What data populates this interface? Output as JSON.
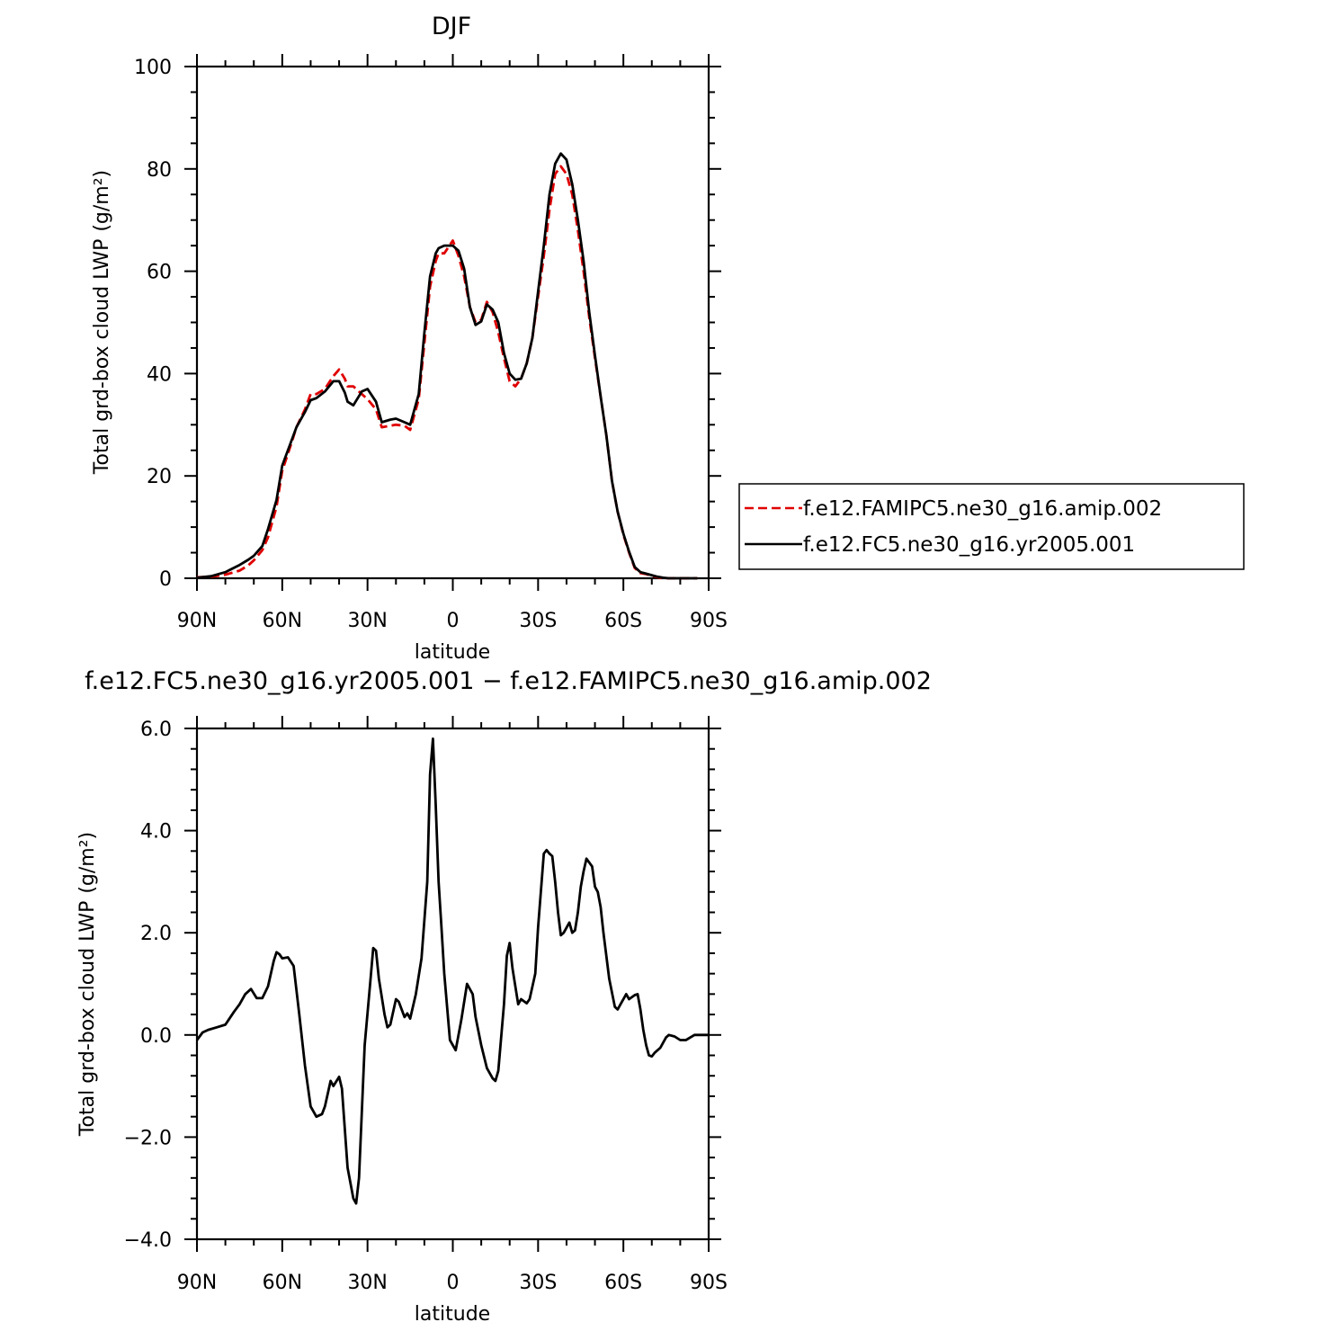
{
  "chart_data": [
    {
      "type": "line",
      "title": "DJF",
      "xlabel": "latitude",
      "ylabel": "Total grd-box cloud LWP",
      "ylabel_unit": "(g/m²)",
      "x_tick_labels": [
        "90N",
        "60N",
        "30N",
        "0",
        "30S",
        "60S",
        "90S"
      ],
      "x_tick_values": [
        90,
        60,
        30,
        0,
        -30,
        -60,
        -90
      ],
      "xlim": [
        90,
        -90
      ],
      "ylim": [
        0,
        100
      ],
      "y_tick_values": [
        0,
        20,
        40,
        60,
        80,
        100
      ],
      "y_tick_labels": [
        "0",
        "20",
        "40",
        "60",
        "80",
        "100"
      ],
      "legend_position": "right",
      "series": [
        {
          "name": "f.e12.FAMIPC5.ne30_g16.amip.002",
          "color": "#e00000",
          "dash": "dashed",
          "x": [
            90,
            85,
            80,
            75,
            72,
            70,
            67,
            65,
            62,
            60,
            57,
            55,
            52,
            50,
            48,
            45,
            42,
            40,
            38,
            37,
            35,
            32,
            30,
            27,
            25,
            22,
            20,
            17,
            15,
            12,
            10,
            8,
            6,
            5,
            3,
            0,
            -2,
            -4,
            -6,
            -8,
            -10,
            -12,
            -14,
            -16,
            -18,
            -20,
            -22,
            -24,
            -26,
            -28,
            -30,
            -32,
            -34,
            -36,
            -38,
            -40,
            -42,
            -44,
            -46,
            -48,
            -50,
            -52,
            -54,
            -56,
            -58,
            -60,
            -62,
            -64,
            -66,
            -68,
            -70,
            -72,
            -74,
            -76,
            -78,
            -80,
            -83,
            -86
          ],
          "values": [
            0.2,
            0.3,
            0.7,
            1.5,
            2.5,
            3.5,
            5.5,
            8,
            14,
            21,
            26,
            29.5,
            33,
            36,
            36,
            37,
            39.5,
            40.8,
            39,
            37.5,
            37.5,
            36,
            35,
            33,
            29.5,
            29.8,
            30,
            29.8,
            29,
            35,
            46,
            57,
            62,
            63.5,
            63.5,
            66,
            63,
            59,
            53,
            50,
            50.5,
            54,
            52,
            48,
            43,
            38.5,
            37.5,
            39,
            42,
            47,
            55,
            63,
            72,
            79,
            80.5,
            79,
            75,
            68,
            60,
            51,
            43,
            35.5,
            28,
            19,
            13,
            8.5,
            5,
            2,
            1,
            0.8,
            0.5,
            0.2,
            0,
            0,
            0,
            0,
            0,
            0
          ]
        },
        {
          "name": "f.e12.FC5.ne30_g16.yr2005.001",
          "color": "#000000",
          "dash": "solid",
          "x": [
            90,
            85,
            80,
            75,
            72,
            70,
            67,
            65,
            62,
            60,
            57,
            55,
            52,
            50,
            48,
            45,
            42,
            40,
            38,
            37,
            35,
            32,
            30,
            27,
            25,
            22,
            20,
            17,
            15,
            12,
            10,
            8,
            6,
            5,
            3,
            0,
            -2,
            -4,
            -6,
            -8,
            -10,
            -12,
            -14,
            -16,
            -18,
            -20,
            -22,
            -24,
            -26,
            -28,
            -30,
            -32,
            -34,
            -36,
            -38,
            -40,
            -42,
            -44,
            -46,
            -48,
            -50,
            -52,
            -54,
            -56,
            -58,
            -60,
            -62,
            -64,
            -66,
            -68,
            -70,
            -72,
            -74,
            -76,
            -78,
            -80,
            -83,
            -86
          ],
          "values": [
            0.1,
            0.4,
            1.2,
            2.6,
            3.6,
            4.4,
            6.3,
            9.6,
            15.3,
            22,
            26.5,
            29.5,
            32.5,
            34.8,
            35.2,
            36.5,
            38.5,
            38.5,
            36.3,
            34.5,
            33.8,
            36.5,
            37,
            34.5,
            30.5,
            31,
            31.2,
            30.5,
            30,
            36,
            48,
            59,
            63.5,
            64.5,
            65,
            65,
            64,
            60.5,
            53,
            49.5,
            50.2,
            53.5,
            52.5,
            50,
            44,
            40,
            38.8,
            39,
            42,
            47,
            56,
            65,
            75,
            81,
            83,
            81.8,
            77,
            70,
            62,
            52,
            43.5,
            35.5,
            28,
            19,
            13,
            8.7,
            5.2,
            2.2,
            1.2,
            0.9,
            0.6,
            0.3,
            0.1,
            0,
            0,
            0,
            0,
            0
          ]
        }
      ]
    },
    {
      "type": "line",
      "title": "f.e12.FC5.ne30_g16.yr2005.001 − f.e12.FAMIPC5.ne30_g16.amip.002",
      "xlabel": "latitude",
      "ylabel": "Total grd-box cloud LWP",
      "ylabel_unit": "(g/m²)",
      "x_tick_labels": [
        "90N",
        "60N",
        "30N",
        "0",
        "30S",
        "60S",
        "90S"
      ],
      "x_tick_values": [
        90,
        60,
        30,
        0,
        -30,
        -60,
        -90
      ],
      "xlim": [
        90,
        -90
      ],
      "ylim": [
        -4,
        6
      ],
      "y_tick_values": [
        -4,
        -2,
        0,
        2,
        4,
        6
      ],
      "y_tick_labels": [
        "−4.0",
        "−2.0",
        "0.0",
        "2.0",
        "4.0",
        "6.0"
      ],
      "series": [
        {
          "name": "",
          "color": "#000000",
          "dash": "solid",
          "x": [
            90,
            88,
            86,
            83,
            80,
            77,
            75,
            73,
            71,
            69,
            67,
            65,
            63,
            62,
            61,
            60,
            58,
            56,
            54,
            52,
            50,
            48,
            46,
            45,
            43,
            42,
            40,
            39,
            37,
            35,
            34,
            33,
            31,
            29,
            28,
            27,
            26,
            24,
            23,
            22,
            20,
            19,
            17,
            16,
            15,
            13,
            11,
            9,
            8,
            7,
            6,
            5,
            4,
            3,
            1,
            -1,
            -3,
            -5,
            -7,
            -8,
            -10,
            -12,
            -14,
            -15,
            -16,
            -18,
            -19,
            -20,
            -21,
            -23,
            -24,
            -26,
            -27,
            -29,
            -30,
            -32,
            -33,
            -34,
            -35,
            -36,
            -37,
            -38,
            -39,
            -41,
            -42,
            -43,
            -44,
            -45,
            -46,
            -47,
            -49,
            -50,
            -51,
            -52,
            -53,
            -55,
            -57,
            -58,
            -59,
            -61,
            -62,
            -64,
            -65,
            -66,
            -67,
            -68,
            -69,
            -70,
            -71,
            -73,
            -75,
            -76,
            -78,
            -80,
            -82,
            -85,
            -88,
            -90
          ],
          "values": [
            -0.1,
            0.05,
            0.1,
            0.15,
            0.2,
            0.45,
            0.6,
            0.8,
            0.9,
            0.72,
            0.72,
            0.95,
            1.45,
            1.62,
            1.58,
            1.5,
            1.52,
            1.35,
            0.4,
            -0.6,
            -1.4,
            -1.6,
            -1.55,
            -1.4,
            -0.9,
            -1.0,
            -0.82,
            -1.05,
            -2.6,
            -3.2,
            -3.3,
            -2.8,
            -0.2,
            1.05,
            1.7,
            1.65,
            1.1,
            0.4,
            0.15,
            0.2,
            0.7,
            0.65,
            0.35,
            0.42,
            0.32,
            0.8,
            1.5,
            3.0,
            5.1,
            5.8,
            4.5,
            3.0,
            2.1,
            1.2,
            -0.1,
            -0.3,
            0.3,
            1.0,
            0.8,
            0.35,
            -0.2,
            -0.65,
            -0.85,
            -0.9,
            -0.7,
            0.6,
            1.55,
            1.8,
            1.3,
            0.6,
            0.7,
            0.62,
            0.7,
            1.2,
            2.1,
            3.55,
            3.62,
            3.55,
            3.5,
            3.0,
            2.4,
            1.95,
            2.0,
            2.2,
            2.0,
            2.05,
            2.4,
            2.9,
            3.2,
            3.45,
            3.3,
            2.9,
            2.8,
            2.5,
            2.0,
            1.1,
            0.55,
            0.5,
            0.6,
            0.8,
            0.7,
            0.78,
            0.8,
            0.5,
            0.1,
            -0.2,
            -0.4,
            -0.42,
            -0.35,
            -0.25,
            -0.05,
            0.0,
            -0.03,
            -0.1,
            -0.1,
            0.0,
            0.0,
            0.0
          ]
        }
      ]
    }
  ]
}
